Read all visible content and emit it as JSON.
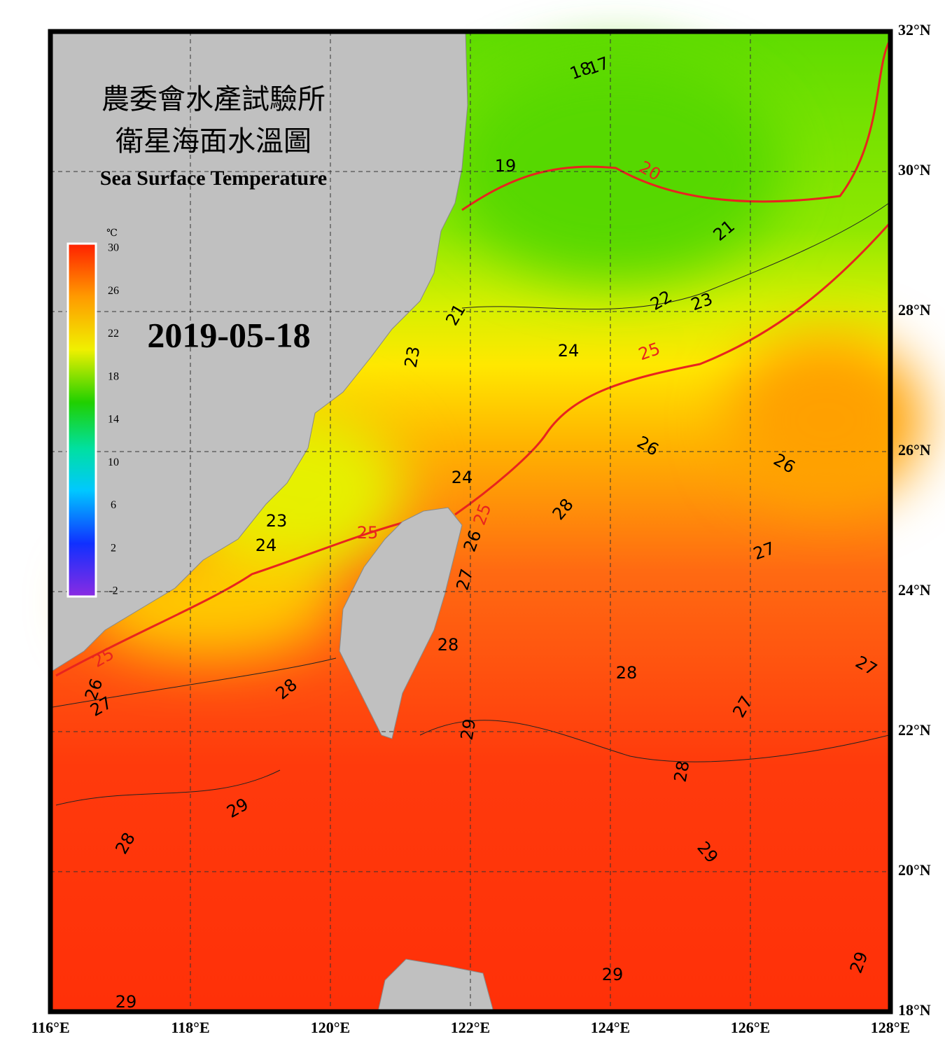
{
  "header": {
    "title_line_1": "農委會水產試驗所",
    "title_line_2": "衛星海面水溫圖",
    "title_en": "Sea Surface Temperature"
  },
  "date": "2019-05-18",
  "colorbar": {
    "unit": "℃",
    "ticks": [
      30,
      26,
      22,
      18,
      14,
      10,
      6,
      2,
      -2
    ]
  },
  "longitude_labels": [
    "116°E",
    "118°E",
    "120°E",
    "122°E",
    "124°E",
    "126°E",
    "128°E"
  ],
  "latitude_labels": [
    "32°N",
    "30°N",
    "28°N",
    "26°N",
    "24°N",
    "22°N",
    "20°N",
    "18°N"
  ],
  "highlight_isotherms": [
    20,
    25
  ],
  "highlight_color": "#e8241e",
  "contour_labels": [
    17,
    18,
    19,
    20,
    21,
    22,
    23,
    21,
    24,
    25,
    23,
    26,
    26,
    24,
    25,
    28,
    25,
    23,
    24,
    26,
    27,
    27,
    28,
    28,
    27,
    25,
    26,
    27,
    28,
    27,
    29,
    28,
    29,
    28,
    29,
    29,
    29,
    29
  ]
}
